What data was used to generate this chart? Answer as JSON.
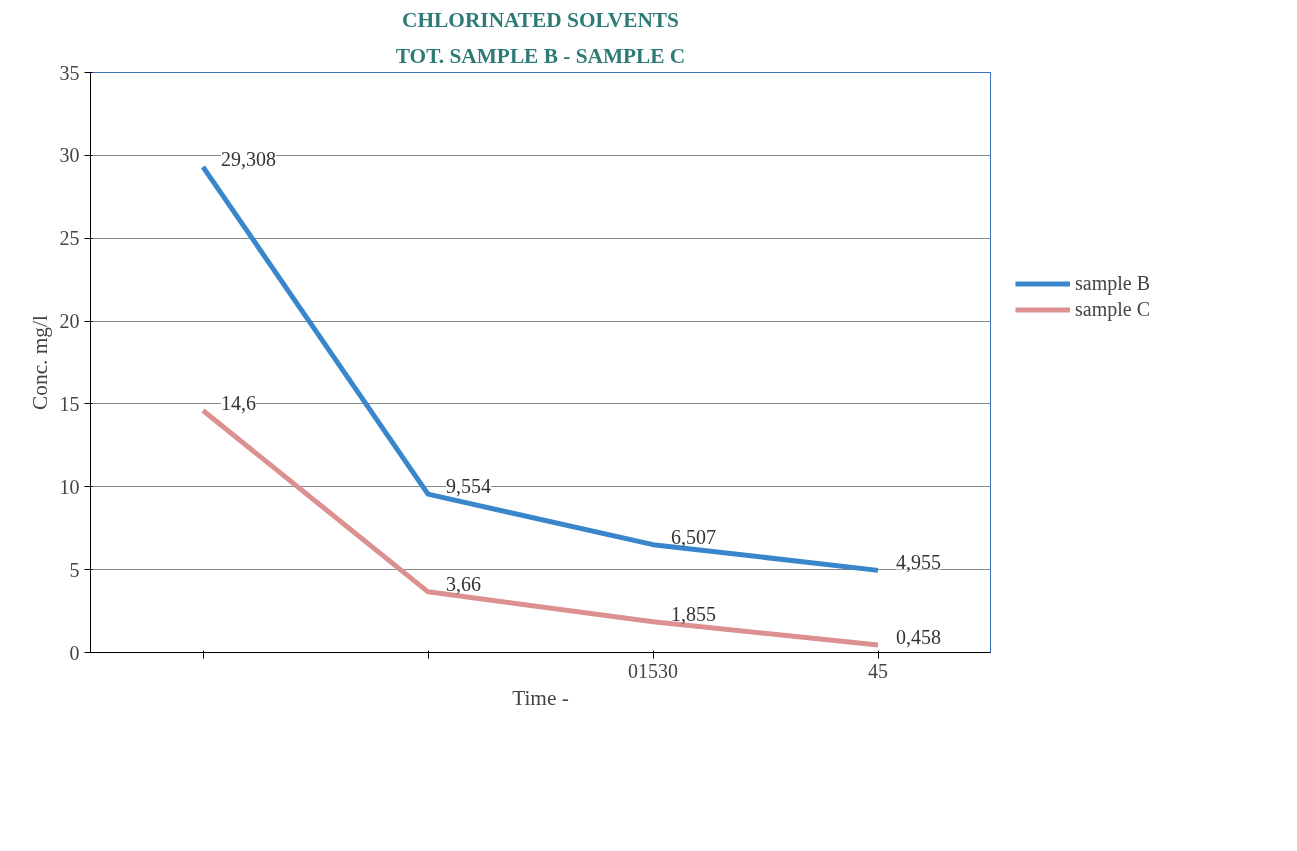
{
  "chart_data": {
    "type": "line",
    "title": "CHLORINATED SOLVENTS",
    "subtitle": "TOT. SAMPLE B - SAMPLE C",
    "xlabel": "Time -",
    "ylabel": "Conc. mg/l",
    "categories": [
      null,
      null,
      "01530",
      "45"
    ],
    "series": [
      {
        "name": "sample B",
        "color": "#3a86cc",
        "values": [
          29.308,
          9.554,
          6.507,
          4.955
        ],
        "value_labels": [
          "29,308",
          "9,554",
          "6,507",
          "4,955"
        ]
      },
      {
        "name": "sample C",
        "color": "#dc9090",
        "values": [
          14.6,
          3.66,
          1.855,
          0.458
        ],
        "value_labels": [
          "14,6",
          "3,66",
          "1,855",
          "0,458"
        ]
      }
    ],
    "ylim": [
      0,
      35
    ],
    "yticks": [
      0,
      5,
      10,
      15,
      20,
      25,
      30,
      35
    ],
    "grid": "y",
    "legend": "right",
    "marker": "none",
    "line_style": "solid"
  }
}
